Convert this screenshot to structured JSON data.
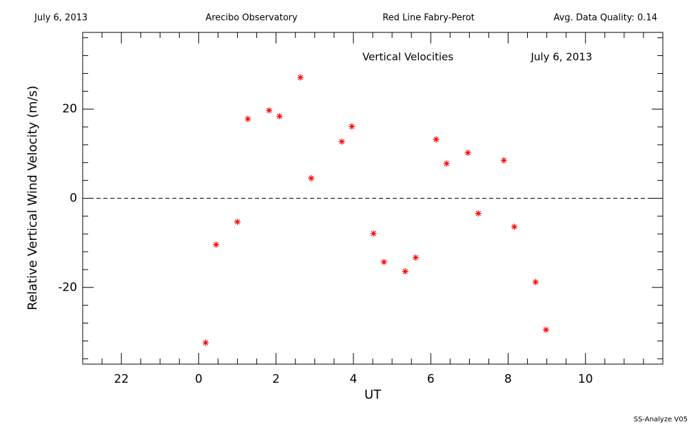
{
  "header": {
    "date": "July 6, 2013",
    "site": "Arecibo Observatory",
    "instrument": "Red Line Fabry-Perot",
    "quality": "Avg. Data Quality: 0.14"
  },
  "chart_data": {
    "type": "scatter",
    "annotations": [
      "Vertical Velocities",
      "July 6, 2013"
    ],
    "xlabel": "UT",
    "ylabel": "Relative Vertical Wind Velocity (m/s)",
    "xlim": [
      -3,
      12
    ],
    "ylim": [
      -37.2,
      37.2
    ],
    "xticks": [
      {
        "value": -2,
        "label": "22"
      },
      0,
      2,
      4,
      6,
      8,
      10
    ],
    "yticks": [
      -20,
      0,
      20
    ],
    "xminorticks": [
      -2.5,
      -1.5,
      -1,
      -0.5,
      0.5,
      1,
      1.5,
      2.5,
      3,
      3.5,
      4.5,
      5,
      5.5,
      6.5,
      7,
      7.5,
      8.5,
      9,
      9.5,
      10.5,
      11,
      11.5
    ],
    "yminorticks": [
      -36,
      -32,
      -28,
      -24,
      -16,
      -12,
      -8,
      -4,
      4,
      8,
      12,
      16,
      24,
      28,
      32,
      36
    ],
    "reference_line": 0,
    "color": "#ff0000",
    "x": [
      0.18,
      0.45,
      1.0,
      1.27,
      1.82,
      2.09,
      2.63,
      2.91,
      3.7,
      3.96,
      4.52,
      4.79,
      5.34,
      5.61,
      6.14,
      6.41,
      6.96,
      7.23,
      7.89,
      8.16,
      8.71,
      8.98
    ],
    "values": [
      -32.4,
      -10.4,
      -5.3,
      17.8,
      19.7,
      18.4,
      27.1,
      4.5,
      12.7,
      16.1,
      -7.9,
      -14.3,
      -16.4,
      -13.3,
      13.2,
      7.8,
      10.2,
      -3.4,
      8.5,
      -6.4,
      -18.8,
      -29.5
    ]
  },
  "footer": "SS-Analyze V05"
}
